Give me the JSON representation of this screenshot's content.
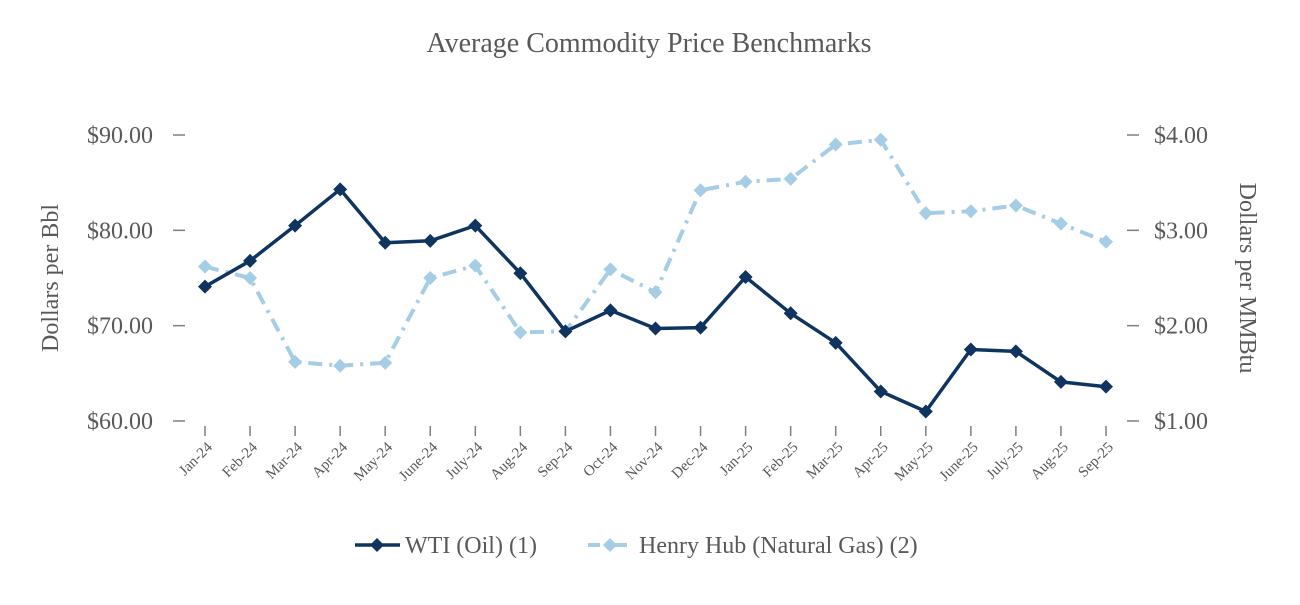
{
  "chart_data": {
    "type": "line",
    "title": "Average Commodity Price Benchmarks",
    "ylabel_left": "Dollars per Bbl",
    "ylabel_right": "Dollars per MMBtu",
    "ylim_left": [
      60,
      90
    ],
    "ylim_right": [
      1,
      4
    ],
    "yticks_left": [
      "$60.00",
      "$70.00",
      "$80.00",
      "$90.00"
    ],
    "yticks_right": [
      "$1.00",
      "$2.00",
      "$3.00",
      "$4.00"
    ],
    "categories": [
      "Jan-24",
      "Feb-24",
      "Mar-24",
      "Apr-24",
      "May-24",
      "June-24",
      "July-24",
      "Aug-24",
      "Sep-24",
      "Oct-24",
      "Nov-24",
      "Dec-24",
      "Jan-25",
      "Feb-25",
      "Mar-25",
      "Apr-25",
      "May-25",
      "June-25",
      "July-25",
      "Aug-25",
      "Sep-25"
    ],
    "series": [
      {
        "name": "WTI (Oil) (1)",
        "axis": "left",
        "color": "#0f3460",
        "line_style": "solid",
        "values": [
          74.1,
          76.8,
          80.5,
          84.3,
          78.7,
          78.9,
          80.5,
          75.5,
          69.4,
          71.6,
          69.7,
          69.8,
          75.1,
          71.3,
          68.2,
          63.1,
          61.0,
          67.5,
          67.3,
          64.1,
          63.6
        ]
      },
      {
        "name": "Henry Hub (Natural Gas) (2)",
        "axis": "right",
        "color": "#a6cde6",
        "line_style": "dashdot",
        "values": [
          2.62,
          2.5,
          1.62,
          1.58,
          1.61,
          2.5,
          2.63,
          1.93,
          1.94,
          2.59,
          2.35,
          3.42,
          3.51,
          3.54,
          3.9,
          3.95,
          3.18,
          3.2,
          3.26,
          3.07,
          2.88
        ]
      }
    ],
    "legend": "bottom-center",
    "grid": false
  }
}
